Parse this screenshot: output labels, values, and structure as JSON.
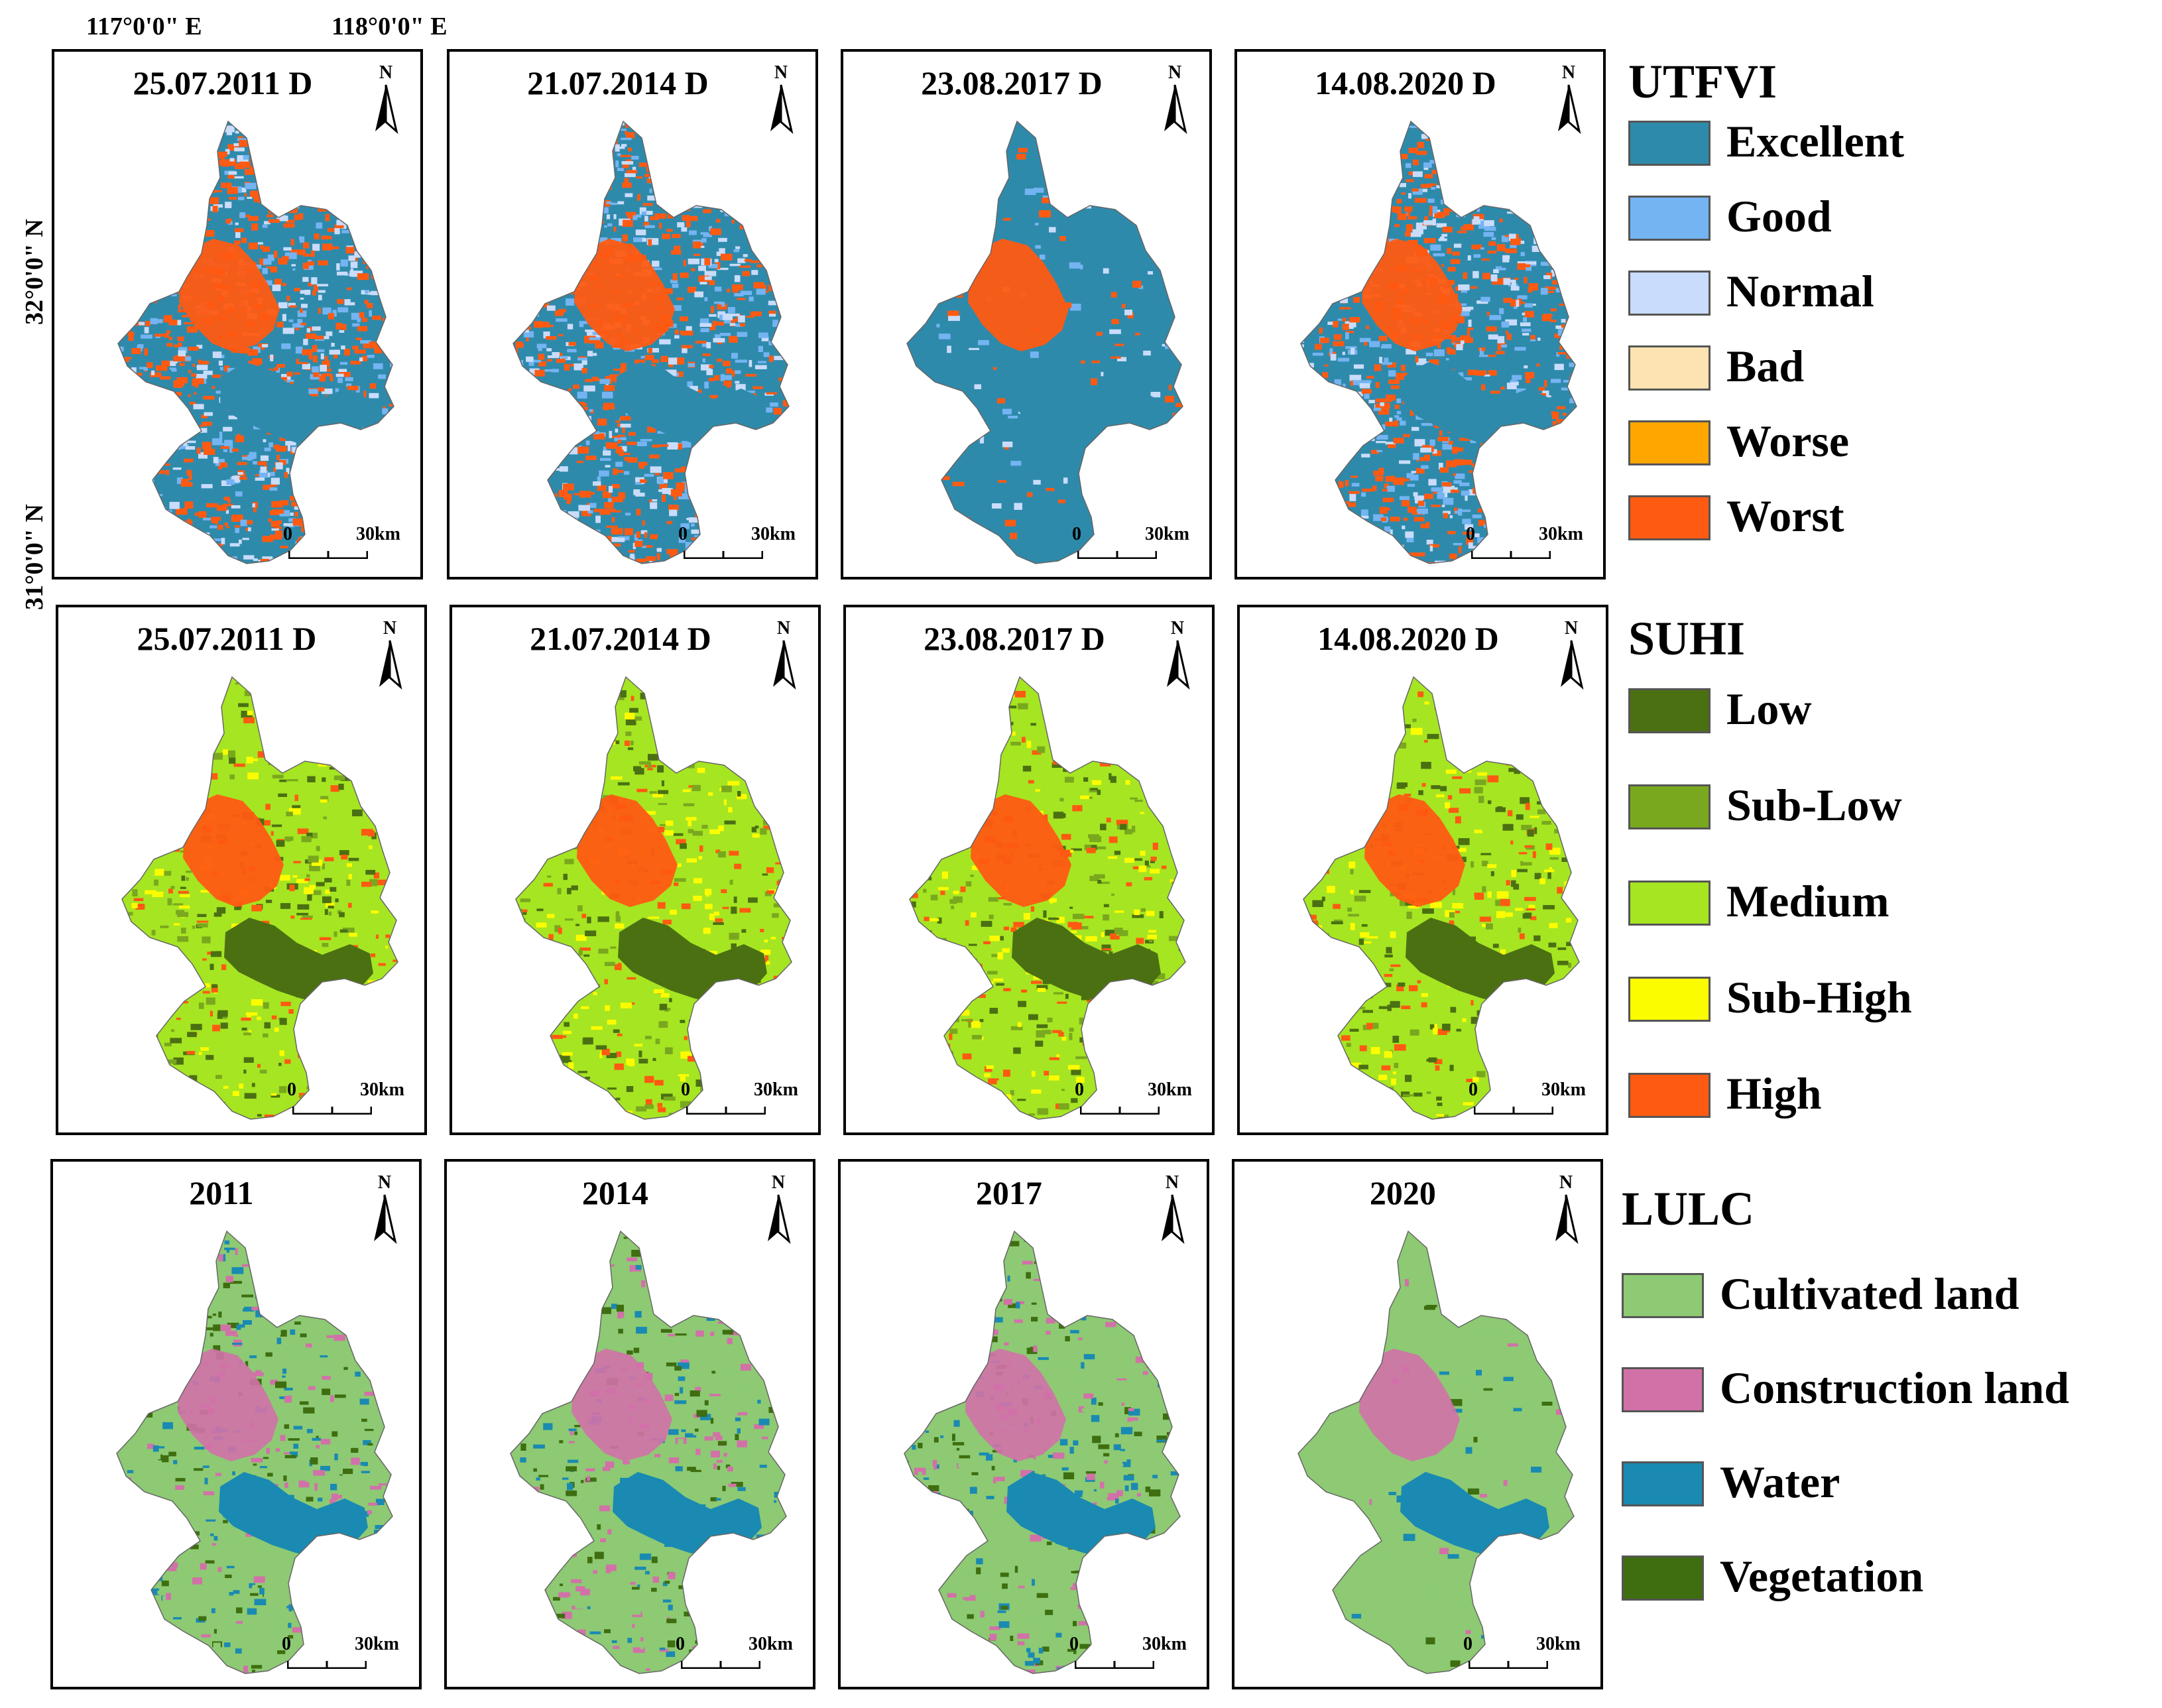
{
  "coordinates": {
    "lon1": "117°0'0\" E",
    "lon2": "118°0'0\" E",
    "lat1": "32°0'0\" N",
    "lat2": "31°0'0\" N"
  },
  "rows": [
    {
      "name": "utfvi",
      "titles": [
        "25.07.2011 D",
        "21.07.2014 D",
        "23.08.2017 D",
        "14.08.2020 D"
      ],
      "legend_title": "UTFVI",
      "legend": [
        {
          "label": "Excellent",
          "color": "#2e8aab"
        },
        {
          "label": "Good",
          "color": "#74b4f2"
        },
        {
          "label": "Normal",
          "color": "#c9dcfb"
        },
        {
          "label": "Bad",
          "color": "#fde3b2"
        },
        {
          "label": "Worse",
          "color": "#ffa600"
        },
        {
          "label": "Worst",
          "color": "#ff5a12"
        }
      ]
    },
    {
      "name": "suhi",
      "titles": [
        "25.07.2011 D",
        "21.07.2014 D",
        "23.08.2017 D",
        "14.08.2020 D"
      ],
      "legend_title": "SUHI",
      "legend": [
        {
          "label": "Low",
          "color": "#4b7012"
        },
        {
          "label": "Sub-Low",
          "color": "#79a81e"
        },
        {
          "label": "Medium",
          "color": "#a6e522"
        },
        {
          "label": "Sub-High",
          "color": "#fcfc00"
        },
        {
          "label": "High",
          "color": "#ff5a12"
        }
      ]
    },
    {
      "name": "lulc",
      "titles": [
        "2011",
        "2014",
        "2017",
        "2020"
      ],
      "legend_title": "LULC",
      "legend": [
        {
          "label": "Cultivated land",
          "color": "#8dca73"
        },
        {
          "label": "Construction land",
          "color": "#d271a8"
        },
        {
          "label": "Water",
          "color": "#1a8ab2"
        },
        {
          "label": "Vegetation",
          "color": "#3e6e0f"
        }
      ]
    }
  ],
  "scale": {
    "zero": "0",
    "distance": "30km"
  },
  "north_label": "N"
}
